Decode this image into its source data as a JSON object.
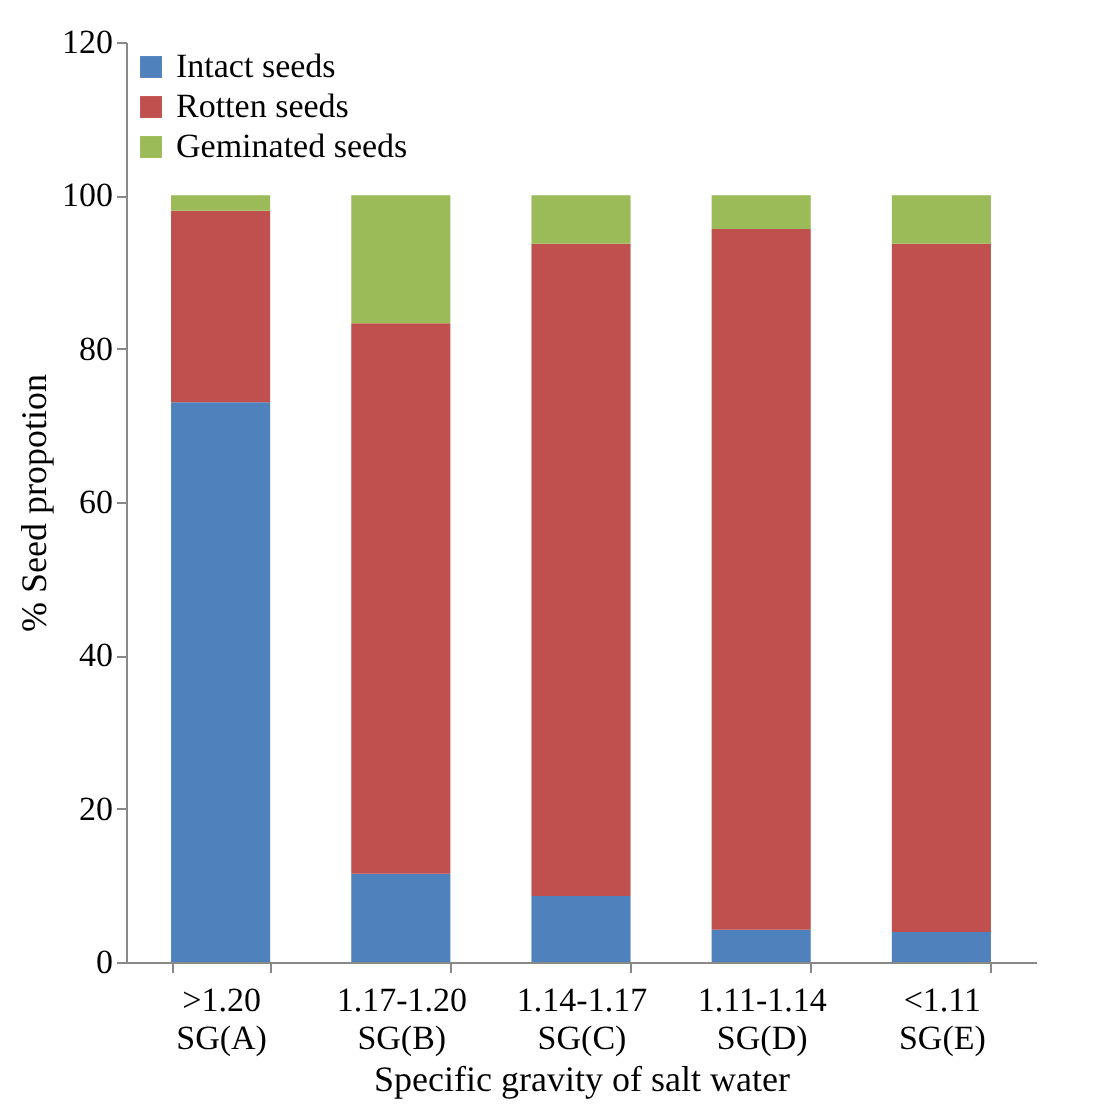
{
  "chart_data": {
    "type": "bar",
    "stacked": true,
    "xlabel": "Specific gravity of salt water",
    "ylabel": "% Seed propotion",
    "categories": [
      ">1.20\nSG(A)",
      "1.17-1.20\nSG(B)",
      "1.14-1.17\nSG(C)",
      "1.11-1.14\nSG(D)",
      "<1.11\nSG(E)"
    ],
    "series": [
      {
        "name": "Intact seeds",
        "color": "#4f81bd",
        "values": [
          73,
          11.5,
          8.6,
          4.2,
          3.9
        ]
      },
      {
        "name": "Rotten seeds",
        "color": "#c0504d",
        "values": [
          25,
          71.8,
          85.1,
          91.4,
          89.8
        ]
      },
      {
        "name": "Geminated seeds",
        "color": "#9bbb59",
        "values": [
          2,
          16.7,
          6.3,
          4.4,
          6.3
        ]
      }
    ],
    "ylim": [
      0,
      120
    ],
    "yticks": [
      0,
      20,
      40,
      60,
      80,
      100,
      120
    ],
    "grid": false,
    "legend": "top left"
  }
}
